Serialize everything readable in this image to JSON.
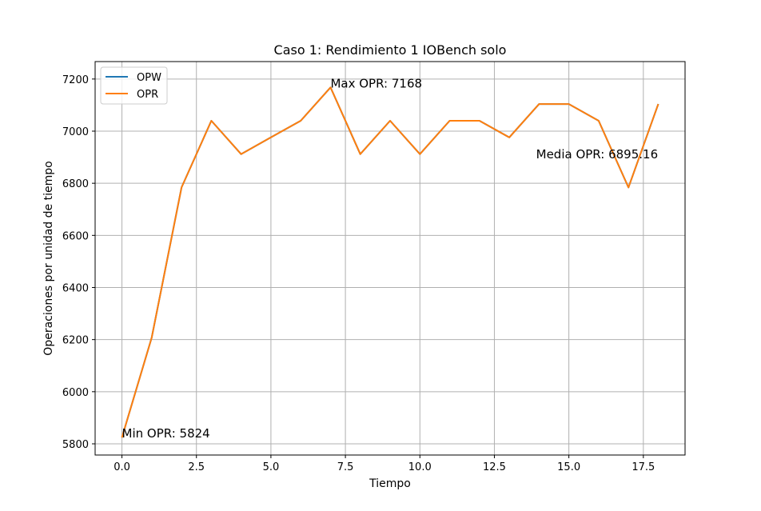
{
  "chart_data": {
    "type": "line",
    "title": "Caso 1: Rendimiento 1 IOBench solo",
    "xlabel": "Tiempo",
    "ylabel": "Operaciones por unidad de tiempo",
    "xlim": [
      -0.9,
      18.9
    ],
    "ylim": [
      5757,
      7267
    ],
    "xticks": [
      0.0,
      2.5,
      5.0,
      7.5,
      10.0,
      12.5,
      15.0,
      17.5
    ],
    "xtick_labels": [
      "0.0",
      "2.5",
      "5.0",
      "7.5",
      "10.0",
      "12.5",
      "15.0",
      "17.5"
    ],
    "yticks": [
      5800,
      6000,
      6200,
      6400,
      6600,
      6800,
      7000,
      7200
    ],
    "ytick_labels": [
      "5800",
      "6000",
      "6200",
      "6400",
      "6600",
      "6800",
      "7000",
      "7200"
    ],
    "grid": true,
    "legend_position": "upper-left",
    "x": [
      0,
      1,
      2,
      3,
      4,
      5,
      6,
      7,
      8,
      9,
      10,
      11,
      12,
      13,
      14,
      15,
      16,
      17,
      18
    ],
    "series": [
      {
        "name": "OPW",
        "color": "#1f77b4",
        "values": [
          5824,
          6208,
          6784,
          7040,
          6912,
          6976,
          7040,
          7168,
          6912,
          7040,
          6912,
          7040,
          7040,
          6976,
          7104,
          7104,
          7040,
          6784,
          7104
        ]
      },
      {
        "name": "OPR",
        "color": "#ff7f0e",
        "values": [
          5824,
          6208,
          6784,
          7040,
          6912,
          6976,
          7040,
          7168,
          6912,
          7040,
          6912,
          7040,
          7040,
          6976,
          7104,
          7104,
          7040,
          6784,
          7104
        ]
      }
    ],
    "annotations": [
      {
        "text": "Max OPR: 7168",
        "x": 7,
        "y": 7168
      },
      {
        "text": "Min OPR: 5824",
        "x": 0,
        "y": 5824
      },
      {
        "text": "Media OPR: 6895.16",
        "x": 13.9,
        "y": 6895.16
      }
    ]
  }
}
